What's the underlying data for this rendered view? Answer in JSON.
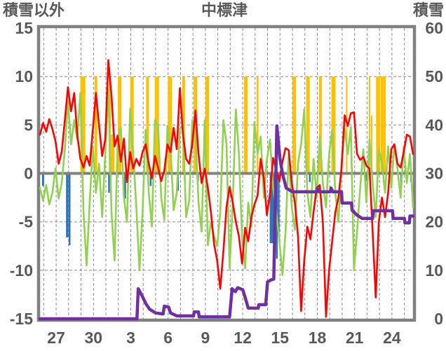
{
  "header": {
    "left_axis_title": "積雪以外",
    "station_title": "中標津",
    "right_axis_title": "積雪"
  },
  "chart_data": {
    "type": "line",
    "title": "中標津",
    "left_axis": {
      "title": "積雪以外",
      "ticks": [
        "15",
        "10",
        "5",
        "0",
        "-5",
        "-10",
        "-15"
      ],
      "tick_values": [
        15,
        10,
        5,
        0,
        -5,
        -10,
        -15
      ],
      "range": [
        -15,
        15
      ]
    },
    "right_axis": {
      "title": "積雪",
      "ticks": [
        "60",
        "50",
        "40",
        "30",
        "20",
        "10",
        "0"
      ],
      "tick_values": [
        60,
        50,
        40,
        30,
        20,
        10,
        0
      ],
      "range": [
        0,
        60
      ]
    },
    "x_axis": {
      "tick_labels": [
        "27",
        "30",
        "3",
        "6",
        "9",
        "12",
        "15",
        "18",
        "21",
        "24"
      ],
      "tick_days": [
        1.3,
        4.3,
        7.3,
        10.3,
        13.3,
        16.3,
        19.3,
        22.3,
        25.3,
        28.3
      ],
      "day_range": [
        0,
        30
      ],
      "gridline_step_days": 1,
      "gridline_offset_days": 0.3,
      "grid_style": "dashed"
    },
    "colors": {
      "red_line": "#FF0000",
      "green_line": "#92D050",
      "orange_bars": "#FFC000",
      "blue_bars": "#2E75B6",
      "purple_line": "#7030A0",
      "grid": "#8C8C8C",
      "frame": "#808080",
      "tick_text": "#595959"
    },
    "series": [
      {
        "name": "orange-bars",
        "type": "bar",
        "axis": "left",
        "color": "#FFC000",
        "bars": [
          [
            3.45,
            10,
            0.4
          ],
          [
            4.5,
            10,
            0.22
          ],
          [
            5.62,
            10,
            0.17
          ],
          [
            5.85,
            4,
            0.28
          ],
          [
            6.4,
            10,
            0.28
          ],
          [
            7.4,
            10,
            0.28
          ],
          [
            8.65,
            10,
            0.22
          ],
          [
            9.4,
            10,
            0.34
          ],
          [
            10.45,
            10,
            0.34
          ],
          [
            11.55,
            10,
            0.22
          ],
          [
            12.5,
            10,
            0.28
          ],
          [
            13.45,
            10,
            0.28
          ],
          [
            16.55,
            10,
            0.28
          ],
          [
            17.5,
            10,
            0.14
          ],
          [
            20.45,
            10,
            0.28
          ],
          [
            21.55,
            10,
            0.28
          ],
          [
            22.55,
            10,
            0.22
          ],
          [
            23.6,
            10,
            0.34
          ],
          [
            24.67,
            10,
            0.12
          ],
          [
            26.5,
            10,
            0.12
          ],
          [
            26.67,
            6,
            0.12
          ],
          [
            27.2,
            10,
            0.34
          ],
          [
            27.6,
            10,
            0.4
          ]
        ]
      },
      {
        "name": "blue-bars",
        "type": "bar",
        "axis": "left",
        "color": "#2E75B6",
        "bars": [
          [
            0.25,
            -1.3,
            0.17
          ],
          [
            2.2,
            -6.6,
            0.2
          ],
          [
            2.38,
            -7.4,
            0.14
          ],
          [
            5.55,
            -2.0,
            0.14
          ],
          [
            6.85,
            -2.6,
            0.14
          ],
          [
            8.9,
            -1.3,
            0.14
          ],
          [
            11.1,
            -1.8,
            0.14
          ],
          [
            12.7,
            -0.8,
            0.14
          ],
          [
            18.7,
            -7.2,
            0.45
          ],
          [
            19.05,
            -8.8,
            0.14
          ],
          [
            19.2,
            -6.2,
            0.14
          ],
          [
            21.7,
            -0.9,
            0.14
          ],
          [
            26.2,
            -0.8,
            0.14
          ],
          [
            29.05,
            -1.4,
            0.14
          ],
          [
            29.85,
            -0.9,
            0.14
          ]
        ]
      },
      {
        "name": "green-line",
        "type": "line",
        "axis": "left",
        "color": "#92D050",
        "x_start": 0,
        "x_step": 0.25,
        "values": [
          -1.5,
          -2.8,
          -1.2,
          -3.2,
          -2.0,
          0.5,
          -2.6,
          -1.0,
          2.5,
          7.5,
          3.0,
          5.5,
          3.5,
          8.3,
          -4.0,
          -9.5,
          -3.0,
          2.8,
          -2.0,
          1.0,
          -4.5,
          2.0,
          8.7,
          -4.0,
          -9.0,
          3.5,
          4.8,
          -2.5,
          -5.0,
          6.7,
          2.0,
          -3.5,
          -10.0,
          -4.0,
          4.5,
          -2.0,
          -5.5,
          5.5,
          4.9,
          -2.5,
          -4.8,
          4.9,
          2.5,
          -3.8,
          -2.0,
          4.6,
          5.0,
          -4.5,
          -2.8,
          5.5,
          4.2,
          -3.0,
          -6.0,
          5.5,
          -7.4,
          -5.0,
          -6.5,
          -7.5,
          -4.0,
          5.5,
          3.0,
          -9.8,
          -3.0,
          6.6,
          2.0,
          -6.5,
          -9.8,
          -3.0,
          -5.5,
          5.3,
          2.0,
          3.8,
          -2.5,
          1.5,
          3.5,
          -1.5,
          -4.0,
          -7.0,
          -10.5,
          -6.0,
          2.0,
          -3.5,
          -5.8,
          1.0,
          3.0,
          6.6,
          -2.0,
          -4.5,
          1.5,
          -2.5,
          3.8,
          -1.0,
          -3.5,
          2.0,
          4.5,
          -2.0,
          -5.0,
          1.0,
          4.6,
          2.0,
          4.8,
          -10.0,
          -6.0,
          -1.5,
          2.5,
          -3.0,
          3.5,
          -1.0,
          -4.5,
          2.5,
          1.0,
          -2.0,
          2.8,
          -1.5,
          3.0,
          0.5,
          -2.5,
          2.8,
          -1.0,
          2.0,
          -3.5
        ]
      },
      {
        "name": "red-line",
        "type": "line",
        "axis": "left",
        "color": "#FF0000",
        "x_start": 0,
        "x_step": 0.25,
        "values": [
          4.0,
          5.2,
          4.3,
          5.6,
          4.6,
          3.3,
          1.0,
          2.2,
          5.5,
          8.9,
          6.4,
          8.3,
          4.0,
          1.5,
          0.6,
          1.8,
          0.8,
          4.5,
          8.3,
          5.0,
          1.8,
          3.5,
          11.7,
          8.0,
          2.8,
          3.9,
          1.2,
          3.6,
          -0.9,
          2.2,
          0.5,
          1.5,
          0.8,
          2.2,
          3.0,
          1.0,
          -0.5,
          1.8,
          0.6,
          -0.8,
          0.3,
          3.0,
          2.2,
          4.7,
          2.5,
          8.8,
          4.0,
          1.5,
          1.0,
          3.0,
          6.5,
          2.0,
          -1.0,
          0.5,
          -1.5,
          -4.0,
          -7.3,
          -9.0,
          -11.9,
          -8.0,
          -3.5,
          -1.4,
          -3.0,
          -5.0,
          -6.5,
          -9.3,
          -5.6,
          -7.0,
          -4.5,
          -3.2,
          -2.3,
          1.5,
          -0.5,
          -4.3,
          -2.0,
          1.6,
          0.3,
          -0.8,
          1.2,
          2.6,
          2.4,
          -1.0,
          -3.0,
          -6.5,
          -14.2,
          -9.0,
          -5.5,
          -6.8,
          -4.0,
          -1.5,
          -1.2,
          -5.0,
          -14.8,
          -10.0,
          -7.0,
          -4.0,
          -2.5,
          0.5,
          6.0,
          4.9,
          6.2,
          6.3,
          2.0,
          1.4,
          1.7,
          0.8,
          0.5,
          -6.0,
          -12.8,
          -5.0,
          -2.5,
          -4.5,
          -2.0,
          2.5,
          3.0,
          1.0,
          0.6,
          2.2,
          4.0,
          3.8,
          2.0
        ]
      },
      {
        "name": "snow-depth-line",
        "type": "line",
        "axis": "right",
        "color": "#7030A0",
        "points": [
          [
            0,
            0
          ],
          [
            7.8,
            0
          ],
          [
            7.9,
            6.2
          ],
          [
            8.2,
            4.8
          ],
          [
            8.5,
            3.2
          ],
          [
            8.8,
            2.0
          ],
          [
            9.3,
            1.2
          ],
          [
            9.9,
            1.0
          ],
          [
            10.0,
            2.6
          ],
          [
            10.35,
            2.4
          ],
          [
            10.5,
            1.2
          ],
          [
            11.0,
            0.6
          ],
          [
            12.35,
            0.6
          ],
          [
            12.4,
            1.4
          ],
          [
            12.75,
            1.4
          ],
          [
            12.8,
            0.4
          ],
          [
            15.25,
            0.4
          ],
          [
            15.45,
            6.2
          ],
          [
            15.7,
            5.6
          ],
          [
            15.9,
            6.4
          ],
          [
            16.3,
            6.0
          ],
          [
            16.5,
            4.4
          ],
          [
            16.75,
            2.2
          ],
          [
            17.55,
            2.2
          ],
          [
            17.6,
            2.9
          ],
          [
            18.15,
            2.9
          ],
          [
            18.3,
            7.6
          ],
          [
            18.55,
            8.0
          ],
          [
            18.8,
            8.2
          ],
          [
            19.05,
            39.8
          ],
          [
            19.3,
            33.0
          ],
          [
            19.5,
            30.0
          ],
          [
            19.8,
            27.0
          ],
          [
            20.3,
            26.2
          ],
          [
            22.25,
            26.2
          ],
          [
            22.3,
            27.0
          ],
          [
            22.45,
            26.2
          ],
          [
            23.35,
            26.2
          ],
          [
            23.4,
            27.0
          ],
          [
            23.55,
            26.2
          ],
          [
            24.25,
            26.2
          ],
          [
            24.3,
            23.9
          ],
          [
            25.05,
            23.9
          ],
          [
            25.1,
            22.4
          ],
          [
            25.5,
            21.4
          ],
          [
            25.9,
            20.7
          ],
          [
            26.75,
            20.7
          ],
          [
            26.8,
            22.3
          ],
          [
            28.35,
            22.3
          ],
          [
            28.4,
            20.7
          ],
          [
            29.3,
            20.7
          ],
          [
            29.35,
            19.8
          ],
          [
            29.7,
            19.8
          ],
          [
            29.75,
            21.2
          ],
          [
            30,
            21.2
          ]
        ]
      }
    ]
  }
}
